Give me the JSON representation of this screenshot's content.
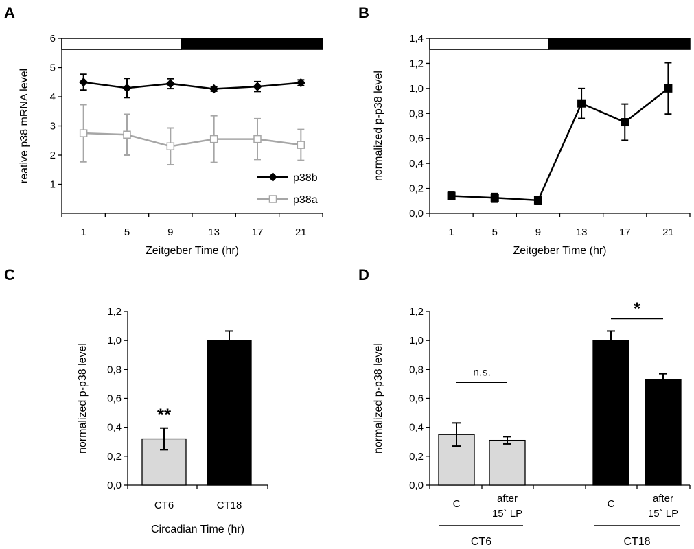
{
  "chart_data": [
    {
      "panel": "A",
      "type": "line",
      "xlabel": "Zeitgeber Time (hr)",
      "ylabel": "reative p38 mRNA level",
      "x": [
        1,
        5,
        9,
        13,
        17,
        21
      ],
      "x_tick_labels": [
        "1",
        "5",
        "9",
        "13",
        "17",
        "21"
      ],
      "ylim": [
        0,
        6
      ],
      "yticks": [
        "1",
        "2",
        "3",
        "4",
        "5",
        "6"
      ],
      "light_dark_bar": {
        "light_end_zt": 11,
        "colors": [
          "#ffffff",
          "#000000"
        ]
      },
      "series": [
        {
          "name": "p38b",
          "values": [
            4.5,
            4.3,
            4.45,
            4.27,
            4.35,
            4.48
          ],
          "errors": [
            0.27,
            0.33,
            0.17,
            0.08,
            0.17,
            0.1
          ],
          "color": "#000000",
          "marker": "diamond-filled"
        },
        {
          "name": "p38a",
          "values": [
            2.75,
            2.7,
            2.3,
            2.55,
            2.55,
            2.35
          ],
          "errors": [
            0.98,
            0.7,
            0.63,
            0.8,
            0.7,
            0.53
          ],
          "color": "#a6a6a6",
          "marker": "square-open"
        }
      ],
      "legend_position": "bottom-right",
      "grid": false
    },
    {
      "panel": "B",
      "type": "line",
      "xlabel": "Zeitgeber Time (hr)",
      "ylabel": "normalized p-p38 level",
      "x": [
        1,
        5,
        9,
        13,
        17,
        21
      ],
      "x_tick_labels": [
        "1",
        "5",
        "9",
        "13",
        "17",
        "21"
      ],
      "ylim": [
        0,
        1.4
      ],
      "yticks": [
        "0,0",
        "0,2",
        "0,4",
        "0,6",
        "0,8",
        "1,0",
        "1,2",
        "1,4"
      ],
      "light_dark_bar": {
        "light_end_zt": 11,
        "colors": [
          "#ffffff",
          "#000000"
        ]
      },
      "series": [
        {
          "values": [
            0.14,
            0.125,
            0.105,
            0.88,
            0.73,
            1.0
          ],
          "errors": [
            0.03,
            0.035,
            0.03,
            0.12,
            0.145,
            0.205
          ],
          "color": "#000000",
          "marker": "square-filled"
        }
      ],
      "grid": false
    },
    {
      "panel": "C",
      "type": "bar",
      "xlabel": "Circadian Time (hr)",
      "ylabel": "normalized p-p38 level",
      "categories": [
        "CT6",
        "CT18"
      ],
      "values": [
        0.32,
        1.0
      ],
      "errors": [
        0.075,
        0.065
      ],
      "colors": [
        "#d9d9d9",
        "#000000"
      ],
      "ylim": [
        0,
        1.2
      ],
      "yticks": [
        "0,0",
        "0,2",
        "0,4",
        "0,6",
        "0,8",
        "1,0",
        "1,2"
      ],
      "annotations": [
        {
          "text": "**",
          "category": "CT6"
        }
      ],
      "grid": false
    },
    {
      "panel": "D",
      "type": "bar",
      "ylabel": "normalized p-p38 level",
      "categories": [
        "C",
        "after 15` LP",
        "C",
        "after 15` LP"
      ],
      "category_lines": [
        [
          "C"
        ],
        [
          "after",
          "15` LP"
        ],
        [
          "C"
        ],
        [
          "after",
          "15` LP"
        ]
      ],
      "groups": [
        "CT6",
        "CT6",
        "CT18",
        "CT18"
      ],
      "group_labels": [
        "CT6",
        "CT18"
      ],
      "values": [
        0.35,
        0.31,
        1.0,
        0.73
      ],
      "errors": [
        0.08,
        0.025,
        0.065,
        0.04
      ],
      "colors": [
        "#d9d9d9",
        "#d9d9d9",
        "#000000",
        "#000000"
      ],
      "ylim": [
        0,
        1.2
      ],
      "yticks": [
        "0,0",
        "0,2",
        "0,4",
        "0,6",
        "0,8",
        "1,0",
        "1,2"
      ],
      "annotations": [
        {
          "text": "n.s.",
          "between": [
            0,
            1
          ],
          "y": 0.71
        },
        {
          "text": "*",
          "between": [
            2,
            3
          ],
          "y": 1.15
        }
      ],
      "grid": false
    }
  ]
}
